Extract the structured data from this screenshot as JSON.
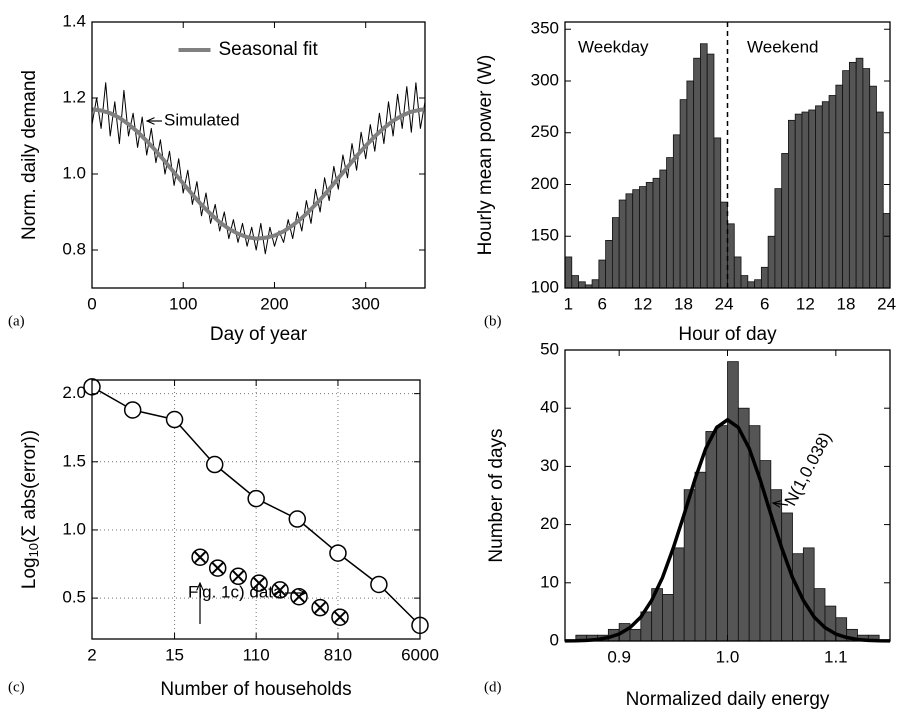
{
  "chart_data": [
    {
      "type": "line",
      "panel_label": "(a)",
      "xlabel": "Day of year",
      "ylabel": "Norm. daily demand",
      "xlim": [
        0,
        365
      ],
      "ylim": [
        0.7,
        1.4
      ],
      "xticks": [
        0,
        100,
        200,
        300
      ],
      "yticks": [
        0.8,
        {
          "value": 1,
          "label": "1.0"
        },
        1.2,
        1.4
      ],
      "legend": "upper center",
      "series": [
        {
          "name": "Simulated",
          "color": "#000000",
          "linewidth": 1,
          "x": [
            0,
            5,
            10,
            15,
            20,
            25,
            30,
            35,
            40,
            45,
            50,
            55,
            60,
            65,
            70,
            75,
            80,
            85,
            90,
            95,
            100,
            105,
            110,
            115,
            120,
            125,
            130,
            135,
            140,
            145,
            150,
            155,
            160,
            165,
            170,
            175,
            180,
            185,
            190,
            195,
            200,
            205,
            210,
            215,
            220,
            225,
            230,
            235,
            240,
            245,
            250,
            255,
            260,
            265,
            270,
            275,
            280,
            285,
            290,
            295,
            300,
            305,
            310,
            315,
            320,
            325,
            330,
            335,
            340,
            345,
            350,
            355,
            360,
            365
          ],
          "values": [
            1.13,
            1.2,
            1.12,
            1.24,
            1.1,
            1.19,
            1.08,
            1.22,
            1.1,
            1.16,
            1.07,
            1.15,
            1.05,
            1.12,
            1.03,
            1.09,
            1.0,
            1.06,
            0.97,
            1.04,
            0.95,
            1.01,
            0.92,
            0.98,
            0.89,
            0.95,
            0.87,
            0.92,
            0.85,
            0.9,
            0.83,
            0.88,
            0.82,
            0.87,
            0.81,
            0.86,
            0.8,
            0.87,
            0.79,
            0.86,
            0.81,
            0.85,
            0.82,
            0.88,
            0.83,
            0.9,
            0.85,
            0.93,
            0.87,
            0.96,
            0.9,
            0.99,
            0.93,
            1.02,
            0.96,
            1.05,
            0.99,
            1.08,
            1.01,
            1.11,
            1.04,
            1.13,
            1.06,
            1.16,
            1.08,
            1.19,
            1.1,
            1.21,
            1.12,
            1.23,
            1.11,
            1.24,
            1.12,
            1.19
          ]
        },
        {
          "name": "Seasonal fit",
          "color": "#808080",
          "linewidth": 4,
          "x": [
            0,
            10,
            20,
            30,
            40,
            50,
            60,
            70,
            80,
            90,
            100,
            110,
            120,
            130,
            140,
            150,
            160,
            170,
            180,
            190,
            200,
            210,
            220,
            230,
            240,
            250,
            260,
            270,
            280,
            290,
            300,
            310,
            320,
            330,
            340,
            350,
            360,
            365
          ],
          "values": [
            1.17,
            1.167,
            1.16,
            1.148,
            1.131,
            1.111,
            1.087,
            1.061,
            1.033,
            1.004,
            0.975,
            0.946,
            0.919,
            0.895,
            0.873,
            0.856,
            0.843,
            0.834,
            0.83,
            0.832,
            0.838,
            0.849,
            0.865,
            0.884,
            0.907,
            0.932,
            0.96,
            0.989,
            1.018,
            1.047,
            1.074,
            1.099,
            1.121,
            1.14,
            1.154,
            1.164,
            1.169,
            1.17
          ]
        }
      ]
    },
    {
      "type": "bar",
      "panel_label": "(b)",
      "xlabel": "Hour of day",
      "ylabel": "Hourly mean power (W)",
      "categories": [
        "1",
        null,
        null,
        null,
        null,
        "6",
        null,
        null,
        null,
        null,
        null,
        "12",
        null,
        null,
        null,
        null,
        null,
        "18",
        null,
        null,
        null,
        null,
        null,
        "24",
        null,
        null,
        null,
        null,
        null,
        "6",
        null,
        null,
        null,
        null,
        null,
        "12",
        null,
        null,
        null,
        null,
        null,
        "18",
        null,
        null,
        null,
        null,
        null,
        "24"
      ],
      "values": [
        130,
        112,
        106,
        103,
        108,
        127,
        146,
        168,
        185,
        191,
        195,
        198,
        202,
        206,
        214,
        226,
        248,
        282,
        300,
        322,
        336,
        326,
        245,
        183,
        162,
        130,
        112,
        106,
        108,
        120,
        150,
        196,
        230,
        262,
        268,
        270,
        272,
        276,
        280,
        286,
        296,
        310,
        318,
        322,
        312,
        295,
        270,
        172
      ],
      "color": "#555555",
      "ylim": [
        100,
        357
      ],
      "yticks": [
        100,
        150,
        200,
        250,
        300,
        350
      ],
      "annotations": [
        "Weekday",
        "Weekend"
      ]
    },
    {
      "type": "line",
      "panel_label": "(c)",
      "xlabel": "Number of households",
      "ylabel": [
        "Log",
        "10",
        "(Σ abs(error))"
      ],
      "xscale": "log",
      "xlim": [
        2,
        6000
      ],
      "ylim": [
        0.2,
        2.1
      ],
      "xticks": [
        2,
        15,
        110,
        810,
        6000
      ],
      "yticks": [
        0.5,
        {
          "value": 1,
          "label": "1.0"
        },
        1.5,
        {
          "value": 2,
          "label": "2.0"
        }
      ],
      "grid": true,
      "series": [
        {
          "color": "#000000",
          "marker": "circle",
          "linewidth": 1.5,
          "x": [
            2,
            5.4,
            15,
            40,
            110,
            300,
            810,
            2200,
            6000
          ],
          "values": [
            2.05,
            1.88,
            1.81,
            1.48,
            1.23,
            1.08,
            0.83,
            0.6,
            0.3
          ]
        },
        {
          "name": "Fig. 1c) data",
          "color": "#000000",
          "marker": "crossed-circle",
          "x": [
            28,
            43,
            71,
            118,
            197,
            313,
            524,
            851
          ],
          "values": [
            0.8,
            0.72,
            0.66,
            0.61,
            0.56,
            0.51,
            0.43,
            0.36
          ]
        }
      ]
    },
    {
      "type": "histogram",
      "panel_label": "(d)",
      "xlabel": "Normalized daily energy",
      "ylabel": "Number of days",
      "bins": [
        0.85,
        0.86,
        0.87,
        0.88,
        0.89,
        0.9,
        0.91,
        0.92,
        0.93,
        0.94,
        0.95,
        0.96,
        0.97,
        0.98,
        0.99,
        1.0,
        1.01,
        1.02,
        1.03,
        1.04,
        1.05,
        1.06,
        1.07,
        1.08,
        1.09,
        1.1,
        1.11,
        1.12,
        1.13,
        1.14,
        1.15
      ],
      "counts": [
        0,
        1,
        1,
        1,
        2,
        3,
        2,
        5,
        9,
        8,
        16,
        26,
        29,
        36,
        37,
        48,
        40,
        37,
        31,
        26,
        22,
        15,
        16,
        9,
        6,
        4,
        2,
        1,
        1,
        0
      ],
      "color": "#555555",
      "xlim": [
        0.85,
        1.15
      ],
      "ylim": [
        0,
        50
      ],
      "xticks": [
        0.9,
        {
          "value": 1,
          "label": "1.0"
        },
        1.1
      ],
      "yticks": [
        0,
        10,
        20,
        30,
        40,
        50
      ],
      "fit": {
        "name": "N(1,0.038)",
        "color": "#000000",
        "x": [
          0.85,
          0.86,
          0.87,
          0.88,
          0.89,
          0.9,
          0.91,
          0.92,
          0.93,
          0.94,
          0.95,
          0.96,
          0.97,
          0.98,
          0.99,
          1.0,
          1.01,
          1.02,
          1.03,
          1.04,
          1.05,
          1.06,
          1.07,
          1.08,
          1.09,
          1.1,
          1.11,
          1.12,
          1.13,
          1.14,
          1.15
        ],
        "values": [
          0.02,
          0.04,
          0.11,
          0.26,
          0.6,
          1.2,
          2.3,
          4.1,
          7,
          10.9,
          16,
          21.8,
          27.8,
          33.1,
          36.7,
          38,
          36.7,
          33.1,
          27.8,
          21.8,
          16,
          10.9,
          7,
          4.1,
          2.3,
          1.2,
          0.6,
          0.26,
          0.11,
          0.04,
          0.02
        ]
      }
    }
  ]
}
